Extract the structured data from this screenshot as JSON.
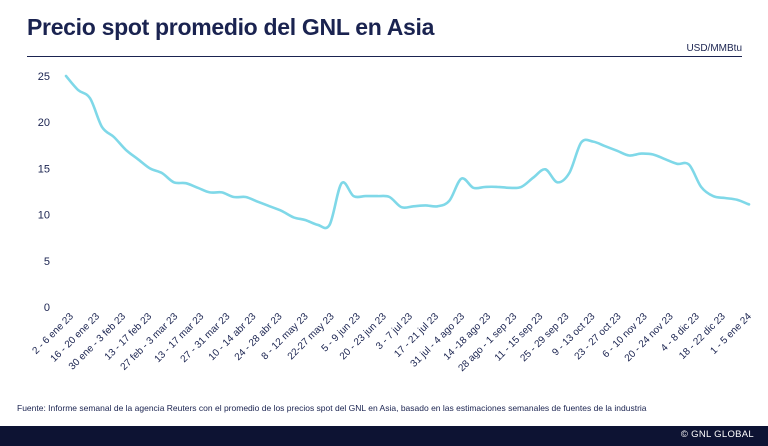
{
  "title": "Precio spot promedio del GNL en Asia",
  "unit": "USD/MMBtu",
  "source": "Fuente: Informe semanal de la agencia Reuters con el promedio de los precios spot del GNL en Asia, basado en las estimaciones semanales de fuentes de la industria",
  "footer": "© GNL GLOBAL",
  "colors": {
    "line": "#7fd8e8",
    "text": "#1a2350",
    "footer": "#0d1333"
  },
  "chart_data": {
    "type": "line",
    "title": "Precio spot promedio del GNL en Asia",
    "ylabel": "USD/MMBtu",
    "ylim": [
      0,
      25
    ],
    "yticks": [
      0,
      5,
      10,
      15,
      20,
      25
    ],
    "grid": false,
    "x_tick_labels": [
      "2 - 6 ene 23",
      "16 - 20 ene 23",
      "30 ene - 3 feb 23",
      "13 - 17 feb 23",
      "27 feb - 3 mar 23",
      "13 - 17 mar 23",
      "27 - 31 mar 23",
      "10 - 14 abr 23",
      "24 - 28 abr 23",
      "8 - 12 may 23",
      "22-27 may 23",
      "5 - 9 jun 23",
      "20 - 23 jun 23",
      "3 - 7 jul 23",
      "17 - 21 jul 23",
      "31 jul - 4 ago 23",
      "14 -18 ago 23",
      "28 ago - 1 sep 23",
      "11 - 15 sep 23",
      "25 - 29 sep 23",
      "9 - 13 oct 23",
      "23 - 27 oct 23",
      "6 - 10 nov 23",
      "20 - 24 nov 23",
      "4 - 8 dic 23",
      "18 - 22 dic 23",
      "1 - 5 ene 24"
    ],
    "series": [
      {
        "values": [
          25.0,
          23.5,
          22.6,
          19.5,
          18.4,
          17.0,
          16.0,
          15.0,
          14.5,
          13.5,
          13.4,
          12.9,
          12.4,
          12.4,
          11.9,
          11.9,
          11.4,
          10.9,
          10.4,
          9.7,
          9.4,
          8.9,
          8.9,
          13.4,
          12.0,
          12.0,
          12.0,
          11.9,
          10.8,
          10.9,
          11.0,
          10.9,
          11.5,
          13.9,
          12.9,
          13.0,
          13.0,
          12.9,
          13.0,
          14.0,
          14.9,
          13.5,
          14.5,
          17.8,
          17.9,
          17.4,
          16.9,
          16.4,
          16.6,
          16.5,
          16.0,
          15.5,
          15.4,
          13.0,
          12.0,
          11.8,
          11.6,
          11.1
        ]
      }
    ]
  }
}
